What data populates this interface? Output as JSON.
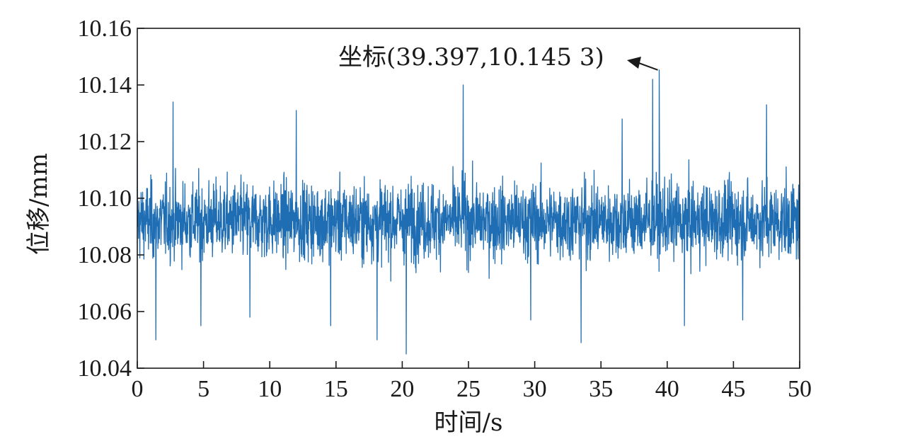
{
  "chart_data": {
    "type": "line",
    "title": "",
    "xlabel": "时间/s",
    "ylabel": "位移/mm",
    "xlim": [
      0,
      50
    ],
    "ylim": [
      10.04,
      10.16
    ],
    "xticks": [
      "0",
      "5",
      "10",
      "15",
      "20",
      "25",
      "30",
      "35",
      "40",
      "45",
      "50"
    ],
    "yticks": [
      "10.04",
      "10.06",
      "10.08",
      "10.10",
      "10.12",
      "10.14",
      "10.16"
    ],
    "grid": false,
    "legend": "none",
    "series_color": "#1f6db3",
    "series": [
      {
        "name": "",
        "description_of_signal": "dense noise around mean",
        "mean": 10.092,
        "typical_range": [
          10.065,
          10.12
        ],
        "extreme_min": 10.045,
        "extreme_max": 10.1453,
        "x": [
          0,
          1.4,
          2.7,
          4.8,
          8.5,
          12.0,
          14.6,
          18.1,
          20.3,
          24.6,
          29.7,
          33.5,
          36.6,
          38.9,
          39.397,
          41.3,
          45.7,
          47.5,
          50
        ],
        "y": [
          10.123,
          10.05,
          10.134,
          10.055,
          10.058,
          10.131,
          10.055,
          10.05,
          10.045,
          10.14,
          10.057,
          10.049,
          10.128,
          10.142,
          10.1453,
          10.055,
          10.057,
          10.133,
          10.058
        ]
      }
    ],
    "annotation": {
      "text": "坐标(39.397,10.145 3)",
      "x": 39.397,
      "y": 10.1453
    }
  }
}
